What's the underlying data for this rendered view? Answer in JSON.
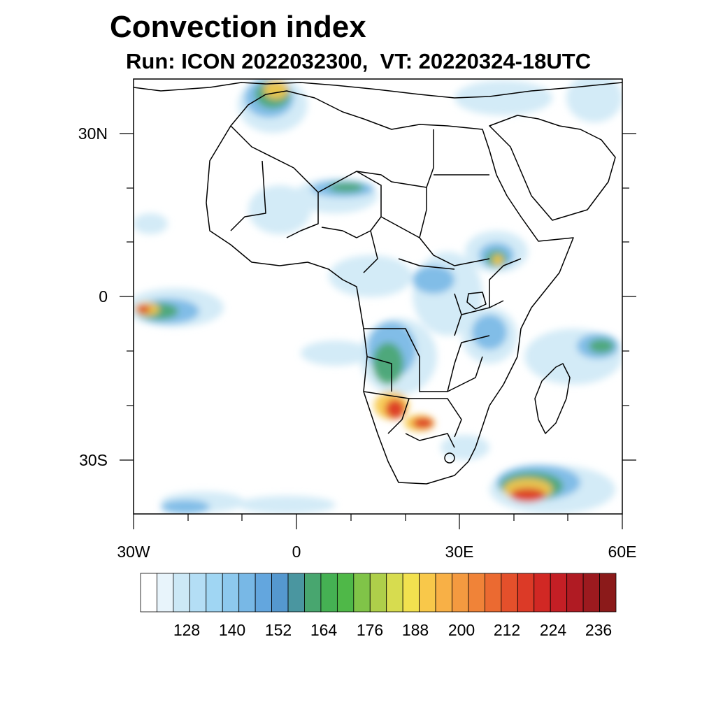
{
  "title": "Convection index",
  "subtitle": "Run: ICON 2022032300,  VT: 20220324-18UTC",
  "axes": {
    "y_labels": [
      "30N",
      "0",
      "30S"
    ],
    "x_labels": [
      "30W",
      "0",
      "30E",
      "60E"
    ]
  },
  "colorbar": {
    "labels": [
      "128",
      "140",
      "152",
      "164",
      "176",
      "188",
      "200",
      "212",
      "224",
      "236"
    ],
    "colors": [
      "#ffffff",
      "#e8f4fb",
      "#cce8f6",
      "#b4def5",
      "#a0d6f3",
      "#8dc9ee",
      "#78b8e6",
      "#63a6de",
      "#5598cf",
      "#4a96a0",
      "#48a66f",
      "#45b153",
      "#4fb848",
      "#80c448",
      "#aecf4a",
      "#d7dc4f",
      "#f2e14f",
      "#f8c84a",
      "#f8b046",
      "#f49a40",
      "#f08338",
      "#eb6a31",
      "#e4502b",
      "#dc3a27",
      "#d12824",
      "#c41f25",
      "#b01b23",
      "#9c1a1f",
      "#8b1a1a"
    ]
  }
}
